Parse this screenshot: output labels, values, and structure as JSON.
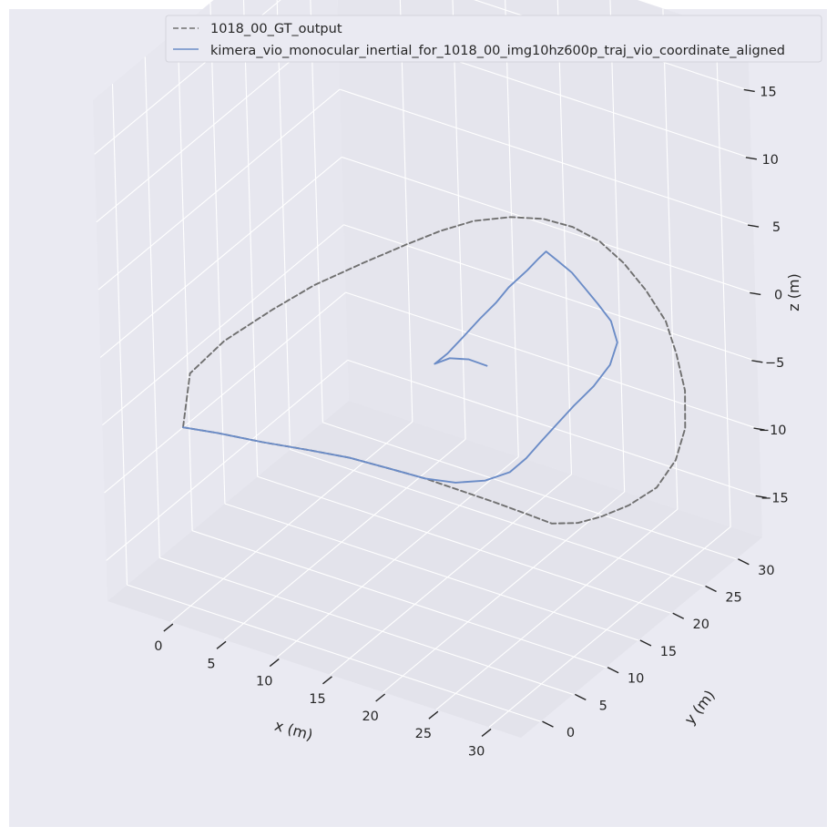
{
  "chart_data": {
    "type": "line",
    "projection": "3d",
    "xlabel": "x (m)",
    "ylabel": "y (m)",
    "zlabel": "z (m)",
    "xlim": [
      -6,
      33
    ],
    "ylim": [
      -3,
      34
    ],
    "zlim": [
      -18,
      19
    ],
    "xticks": [
      0,
      5,
      10,
      15,
      20,
      25,
      30
    ],
    "yticks": [
      0,
      5,
      10,
      15,
      20,
      25,
      30
    ],
    "zticks": [
      -15,
      -10,
      -5,
      0,
      5,
      10,
      15
    ],
    "grid": true,
    "legend_position": "top",
    "colors": {
      "background": "#eaeaf2",
      "grid": "#ffffff",
      "gt": "#707070",
      "vio": "#6b8cc7"
    },
    "series": [
      {
        "name": "1018_00_GT_output",
        "style": "dashed",
        "color": "#707070",
        "x": [
          -1.5,
          0.5,
          3.5,
          6.5,
          9.5,
          12.5,
          15.5,
          18.5,
          21.5,
          24.5,
          26.8,
          28.5,
          29.8,
          31.2,
          32.3,
          32.6,
          32.0,
          30.5,
          28.5,
          26.5,
          24.0,
          21.5,
          19.0,
          16.5,
          14.0,
          11.5,
          9.0,
          7.0,
          5.2,
          3.2,
          1.2,
          -0.3,
          -1.8,
          -2.6,
          -1.5
        ],
        "y": [
          2.0,
          4.0,
          6.0,
          8.0,
          9.5,
          10.5,
          11.3,
          11.6,
          11.9,
          12.1,
          12.3,
          13.5,
          15.0,
          17.0,
          19.5,
          22.0,
          24.5,
          27.0,
          29.0,
          30.7,
          31.8,
          32.5,
          32.9,
          32.9,
          32.5,
          31.5,
          29.9,
          28.0,
          25.5,
          22.0,
          18.0,
          14.0,
          9.0,
          5.0,
          2.0
        ],
        "z": [
          -6.0,
          -6.7,
          -7.4,
          -8.0,
          -8.4,
          -8.8,
          -9.1,
          -9.3,
          -9.5,
          -9.7,
          -9.9,
          -9.9,
          -9.7,
          -9.3,
          -8.7,
          -7.6,
          -6.4,
          -5.0,
          -3.6,
          -2.4,
          -1.2,
          -0.1,
          0.7,
          1.1,
          1.2,
          1.1,
          0.8,
          0.3,
          -0.2,
          -0.7,
          -1.2,
          -1.8,
          -2.5,
          -3.5,
          -6.0
        ]
      },
      {
        "name": "kimera_vio_monocular_inertial_for_1018_00_img10hz600p_traj_vio_coordinate_aligned",
        "style": "solid",
        "color": "#6b8cc7",
        "x": [
          -1.5,
          0.5,
          3.5,
          6.5,
          9.5,
          12.5,
          15.5,
          18.0,
          20.5,
          22.5,
          23.6,
          24.5,
          25.5,
          26.5,
          27.6,
          28.2,
          28.0,
          26.5,
          24.5,
          22.5,
          20.5,
          18.5,
          16.7,
          16.2,
          15.5,
          14.5,
          14.0,
          13.2,
          12.5,
          11.8,
          11.0,
          12.0,
          13.5,
          15.0
        ],
        "y": [
          2.0,
          4.0,
          6.0,
          8.0,
          9.5,
          10.5,
          11.3,
          11.9,
          12.4,
          13.0,
          13.8,
          14.5,
          15.5,
          16.5,
          17.9,
          19.5,
          21.0,
          22.5,
          23.8,
          25.0,
          26.3,
          27.4,
          28.5,
          28.2,
          27.5,
          26.2,
          25.0,
          23.8,
          22.5,
          21.0,
          20.3,
          21.0,
          21.5,
          21.8
        ],
        "z": [
          -6.0,
          -6.7,
          -7.4,
          -8.0,
          -8.4,
          -8.8,
          -9.1,
          -9.0,
          -8.4,
          -7.5,
          -6.5,
          -5.4,
          -4.2,
          -3.0,
          -1.8,
          -0.7,
          0.3,
          0.9,
          1.1,
          1.3,
          1.4,
          1.3,
          1.1,
          0.6,
          -0.2,
          -1.2,
          -2.0,
          -2.9,
          -3.8,
          -4.7,
          -5.4,
          -5.0,
          -4.9,
          -5.1
        ]
      }
    ]
  }
}
